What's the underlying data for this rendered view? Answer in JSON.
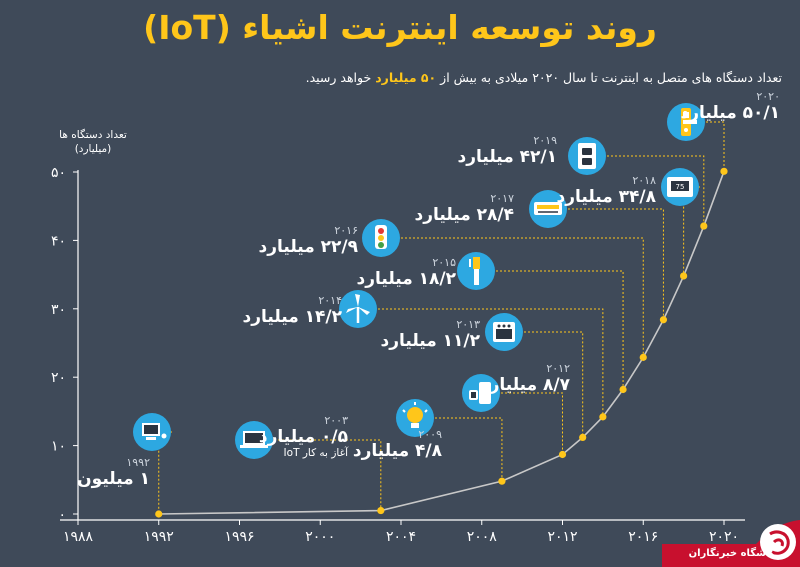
{
  "title": "روند توسعه اینترنت اشیاء (IoT)",
  "subtitle": {
    "before": "تعداد دستگاه های متصل به اینترنت تا سال ۲۰۲۰ میلادی به بیش از",
    "highlight": "۵۰ میلیارد",
    "after": "خواهد رسید."
  },
  "axis": {
    "ylabel_line1": "تعداد دستگاه ها",
    "ylabel_line2": "(میلیارد)"
  },
  "chart_data": {
    "type": "line",
    "title": "روند توسعه اینترنت اشیاء (IoT)",
    "xlabel": "",
    "ylabel": "تعداد دستگاه ها (میلیارد)",
    "xlim": [
      1988,
      2020
    ],
    "ylim": [
      0,
      50
    ],
    "xticks": [
      1988,
      1992,
      1996,
      2000,
      2004,
      2008,
      2012,
      2016,
      2020
    ],
    "xtick_labels": [
      "۱۹۸۸",
      "۱۹۹۲",
      "۱۹۹۶",
      "۲۰۰۰",
      "۲۰۰۴",
      "۲۰۰۸",
      "۲۰۱۲",
      "۲۰۱۶",
      "۲۰۲۰"
    ],
    "yticks": [
      0,
      10,
      20,
      30,
      40,
      50
    ],
    "ytick_labels": [
      "۰",
      "۱۰",
      "۲۰",
      "۳۰",
      "۴۰",
      "۵۰"
    ],
    "grid": false,
    "points": [
      {
        "x": 1992,
        "y": 0.001
      },
      {
        "x": 2003,
        "y": 0.5
      },
      {
        "x": 2009,
        "y": 4.8
      },
      {
        "x": 2012,
        "y": 8.7
      },
      {
        "x": 2013,
        "y": 11.2
      },
      {
        "x": 2014,
        "y": 14.2
      },
      {
        "x": 2015,
        "y": 18.2
      },
      {
        "x": 2016,
        "y": 22.9
      },
      {
        "x": 2017,
        "y": 28.4
      },
      {
        "x": 2018,
        "y": 34.8
      },
      {
        "x": 2019,
        "y": 42.1
      },
      {
        "x": 2020,
        "y": 50.1
      }
    ],
    "annotations": [
      {
        "year_text": "۱۹۹۲",
        "value_text": "۱ میلیون",
        "icon": "computer-icon"
      },
      {
        "year_text": "۲۰۰۳",
        "value_text": "۰/۵ میلیارد",
        "note": "آغاز به کار IoT",
        "icon": "laptop-icon"
      },
      {
        "year_text": "۲۰۰۹",
        "value_text": "۴/۸ میلیارد",
        "icon": "lightbulb-icon"
      },
      {
        "year_text": "۲۰۱۲",
        "value_text": "۸/۷ میلیارد",
        "icon": "smartwatch-phone-icon"
      },
      {
        "year_text": "۲۰۱۳",
        "value_text": "۱۱/۲ میلیارد",
        "icon": "oven-icon"
      },
      {
        "year_text": "۲۰۱۴",
        "value_text": "۱۴/۲ میلیارد",
        "icon": "wind-turbine-icon"
      },
      {
        "year_text": "۲۰۱۵",
        "value_text": "۱۸/۲ میلیارد",
        "icon": "toothbrush-icon"
      },
      {
        "year_text": "۲۰۱۶",
        "value_text": "۲۲/۹ میلیارد",
        "icon": "traffic-light-icon"
      },
      {
        "year_text": "۲۰۱۷",
        "value_text": "۲۸/۴ میلیارد",
        "icon": "air-conditioner-icon"
      },
      {
        "year_text": "۲۰۱۸",
        "value_text": "۳۴/۸ میلیارد",
        "icon": "thermostat-icon"
      },
      {
        "year_text": "۲۰۱۹",
        "value_text": "۴۲/۱ میلیارد",
        "icon": "smart-outlet-icon"
      },
      {
        "year_text": "۲۰۲۰",
        "value_text": "۵۰/۱ میلیارد",
        "icon": "smart-door-lock-icon"
      }
    ]
  },
  "colors": {
    "background": "#3f4a59",
    "accent": "#ffc61a",
    "icon_circle": "#2da8e1",
    "line": "#c8c8c8",
    "point": "#ffc61a"
  },
  "branding": {
    "logo_text": "باشگاه خبرنگاران"
  }
}
